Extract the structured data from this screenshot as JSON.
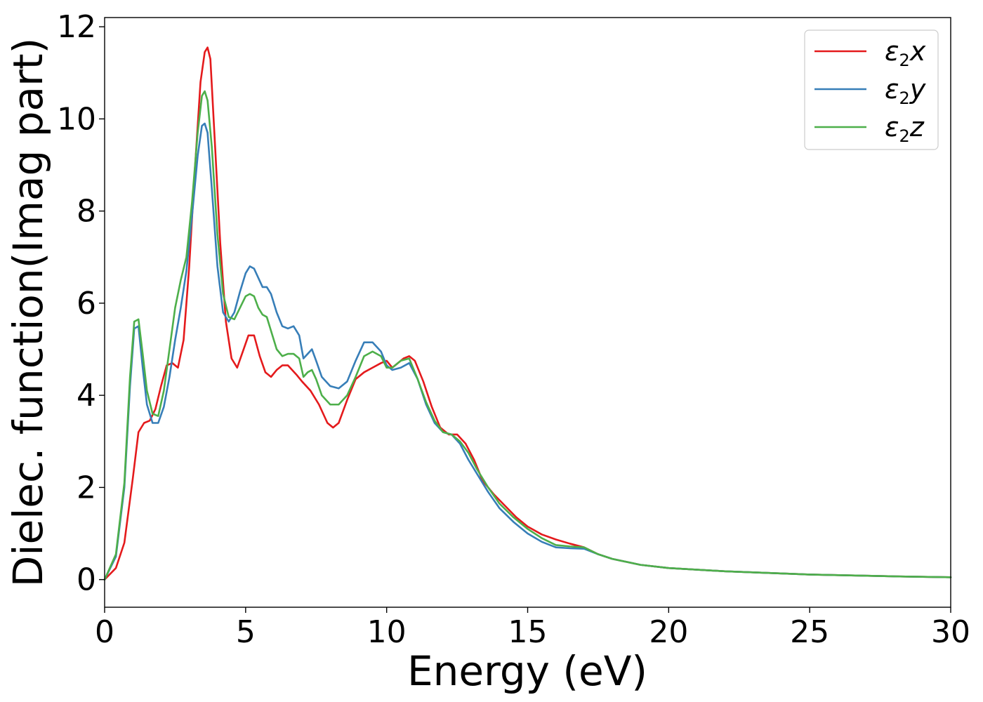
{
  "chart_data": {
    "type": "line",
    "title": "",
    "xlabel": "Energy (eV)",
    "ylabel": "Dielec. function(Imag part)",
    "xlim": [
      0,
      30
    ],
    "ylim": [
      -0.6,
      12.2
    ],
    "xticks": [
      0,
      5,
      10,
      15,
      20,
      25,
      30
    ],
    "yticks": [
      0,
      2,
      4,
      6,
      8,
      10,
      12
    ],
    "grid": false,
    "legend_position": "top-right",
    "series": [
      {
        "name": "ε2x",
        "label_main": "ε",
        "label_sub": "2",
        "label_tail": "x",
        "color": "#e41a1c",
        "x": [
          0,
          0.4,
          0.7,
          1.0,
          1.2,
          1.4,
          1.6,
          1.8,
          2.0,
          2.2,
          2.4,
          2.6,
          2.8,
          3.0,
          3.2,
          3.4,
          3.55,
          3.65,
          3.75,
          3.9,
          4.1,
          4.3,
          4.5,
          4.7,
          4.9,
          5.1,
          5.3,
          5.5,
          5.7,
          5.9,
          6.1,
          6.3,
          6.5,
          6.8,
          7.0,
          7.3,
          7.6,
          7.9,
          8.1,
          8.3,
          8.6,
          8.9,
          9.2,
          9.5,
          9.8,
          10.0,
          10.2,
          10.4,
          10.6,
          10.8,
          11.0,
          11.3,
          11.6,
          11.9,
          12.2,
          12.5,
          12.8,
          13.1,
          13.4,
          13.8,
          14.2,
          14.6,
          15.0,
          15.5,
          16.0,
          16.5,
          17.0,
          17.5,
          18.0,
          19.0,
          20.0,
          22.0,
          25.0,
          28.0,
          30.0
        ],
        "y": [
          0.0,
          0.25,
          0.8,
          2.2,
          3.2,
          3.4,
          3.45,
          3.7,
          4.2,
          4.65,
          4.7,
          4.6,
          5.2,
          6.8,
          8.9,
          10.8,
          11.45,
          11.55,
          11.3,
          9.6,
          7.3,
          5.6,
          4.8,
          4.6,
          4.95,
          5.3,
          5.3,
          4.85,
          4.5,
          4.4,
          4.55,
          4.65,
          4.65,
          4.45,
          4.3,
          4.1,
          3.8,
          3.4,
          3.3,
          3.4,
          3.9,
          4.35,
          4.5,
          4.6,
          4.7,
          4.75,
          4.6,
          4.7,
          4.8,
          4.85,
          4.75,
          4.3,
          3.75,
          3.3,
          3.15,
          3.15,
          2.95,
          2.6,
          2.15,
          1.85,
          1.6,
          1.35,
          1.15,
          0.98,
          0.87,
          0.78,
          0.7,
          0.55,
          0.45,
          0.32,
          0.25,
          0.18,
          0.11,
          0.07,
          0.05
        ]
      },
      {
        "name": "ε2y",
        "label_main": "ε",
        "label_sub": "2",
        "label_tail": "y",
        "color": "#377eb8",
        "x": [
          0,
          0.4,
          0.7,
          0.9,
          1.05,
          1.2,
          1.35,
          1.5,
          1.7,
          1.9,
          2.1,
          2.3,
          2.5,
          2.7,
          2.9,
          3.1,
          3.3,
          3.45,
          3.55,
          3.65,
          3.8,
          4.0,
          4.2,
          4.4,
          4.6,
          4.8,
          5.0,
          5.15,
          5.3,
          5.45,
          5.6,
          5.75,
          5.9,
          6.1,
          6.3,
          6.5,
          6.7,
          6.9,
          7.05,
          7.2,
          7.35,
          7.5,
          7.7,
          8.0,
          8.3,
          8.6,
          8.9,
          9.2,
          9.5,
          9.8,
          10.0,
          10.2,
          10.5,
          10.8,
          11.1,
          11.4,
          11.7,
          12.0,
          12.3,
          12.6,
          12.9,
          13.2,
          13.6,
          14.0,
          14.5,
          15.0,
          15.5,
          16.0,
          16.5,
          17.0,
          17.5,
          18.0,
          19.0,
          20.0,
          22.0,
          25.0,
          28.0,
          30.0
        ],
        "y": [
          0.0,
          0.5,
          2.0,
          4.2,
          5.45,
          5.5,
          4.6,
          3.8,
          3.4,
          3.4,
          3.75,
          4.4,
          5.2,
          5.9,
          6.7,
          7.9,
          9.2,
          9.85,
          9.9,
          9.7,
          8.5,
          6.8,
          5.8,
          5.6,
          5.8,
          6.25,
          6.65,
          6.8,
          6.75,
          6.55,
          6.35,
          6.35,
          6.2,
          5.8,
          5.5,
          5.45,
          5.5,
          5.3,
          4.8,
          4.9,
          5.0,
          4.75,
          4.4,
          4.2,
          4.15,
          4.3,
          4.75,
          5.15,
          5.15,
          4.95,
          4.65,
          4.55,
          4.6,
          4.7,
          4.35,
          3.8,
          3.4,
          3.2,
          3.15,
          2.95,
          2.6,
          2.3,
          1.9,
          1.55,
          1.25,
          1.0,
          0.82,
          0.7,
          0.68,
          0.67,
          0.55,
          0.45,
          0.32,
          0.25,
          0.18,
          0.11,
          0.07,
          0.05
        ]
      },
      {
        "name": "ε2z",
        "label_main": "ε",
        "label_sub": "2",
        "label_tail": "z",
        "color": "#4daf4a",
        "x": [
          0,
          0.4,
          0.7,
          0.9,
          1.05,
          1.2,
          1.35,
          1.5,
          1.7,
          1.9,
          2.1,
          2.3,
          2.5,
          2.7,
          2.9,
          3.1,
          3.3,
          3.45,
          3.55,
          3.65,
          3.8,
          4.0,
          4.2,
          4.4,
          4.6,
          4.8,
          5.0,
          5.15,
          5.3,
          5.45,
          5.6,
          5.75,
          5.9,
          6.1,
          6.3,
          6.5,
          6.7,
          6.9,
          7.05,
          7.2,
          7.35,
          7.5,
          7.7,
          8.0,
          8.3,
          8.6,
          8.9,
          9.2,
          9.5,
          9.8,
          10.0,
          10.2,
          10.5,
          10.8,
          11.1,
          11.4,
          11.7,
          12.0,
          12.3,
          12.6,
          12.9,
          13.2,
          13.6,
          14.0,
          14.5,
          15.0,
          15.5,
          16.0,
          16.5,
          17.0,
          17.5,
          18.0,
          19.0,
          20.0,
          22.0,
          25.0,
          28.0,
          30.0
        ],
        "y": [
          0.0,
          0.55,
          2.1,
          4.4,
          5.6,
          5.65,
          4.9,
          4.1,
          3.6,
          3.55,
          4.1,
          5.0,
          5.9,
          6.5,
          7.0,
          8.2,
          9.7,
          10.5,
          10.6,
          10.4,
          9.4,
          7.5,
          6.2,
          5.7,
          5.65,
          5.9,
          6.15,
          6.2,
          6.15,
          5.9,
          5.75,
          5.7,
          5.4,
          5.0,
          4.85,
          4.9,
          4.9,
          4.8,
          4.4,
          4.5,
          4.55,
          4.35,
          4.0,
          3.8,
          3.8,
          4.0,
          4.4,
          4.85,
          4.95,
          4.85,
          4.6,
          4.6,
          4.75,
          4.8,
          4.35,
          3.85,
          3.45,
          3.2,
          3.15,
          3.0,
          2.75,
          2.4,
          2.0,
          1.65,
          1.35,
          1.1,
          0.9,
          0.75,
          0.72,
          0.7,
          0.55,
          0.45,
          0.32,
          0.25,
          0.18,
          0.11,
          0.07,
          0.05
        ]
      }
    ]
  }
}
